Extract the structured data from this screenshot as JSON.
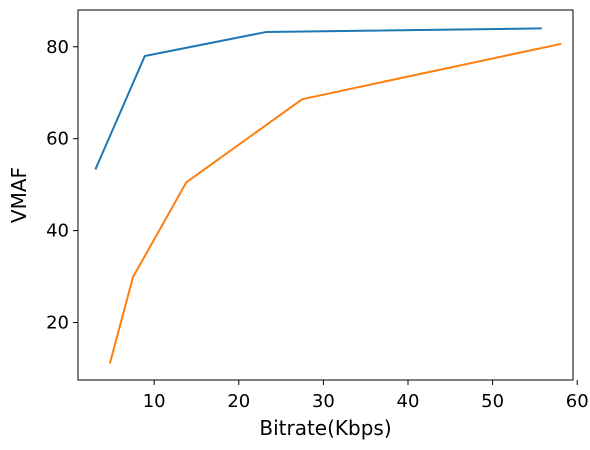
{
  "chart_data": {
    "type": "line",
    "title": "",
    "xlabel": "Bitrate(Kbps)",
    "ylabel": "VMAF",
    "xlim": [
      1,
      59.5
    ],
    "ylim": [
      7.5,
      88
    ],
    "xticks": [
      10,
      20,
      30,
      40,
      50,
      60
    ],
    "yticks": [
      20,
      40,
      60,
      80
    ],
    "grid": false,
    "legend": "none",
    "series": [
      {
        "color": "#1f77b4",
        "x": [
          3.1,
          8.9,
          23.2,
          55.7
        ],
        "y": [
          53.5,
          78.0,
          83.2,
          84.0
        ]
      },
      {
        "color": "#ff7f0e",
        "x": [
          4.8,
          7.5,
          13.8,
          27.5,
          58.0
        ],
        "y": [
          11.3,
          29.9,
          50.5,
          68.6,
          80.6
        ]
      }
    ]
  }
}
